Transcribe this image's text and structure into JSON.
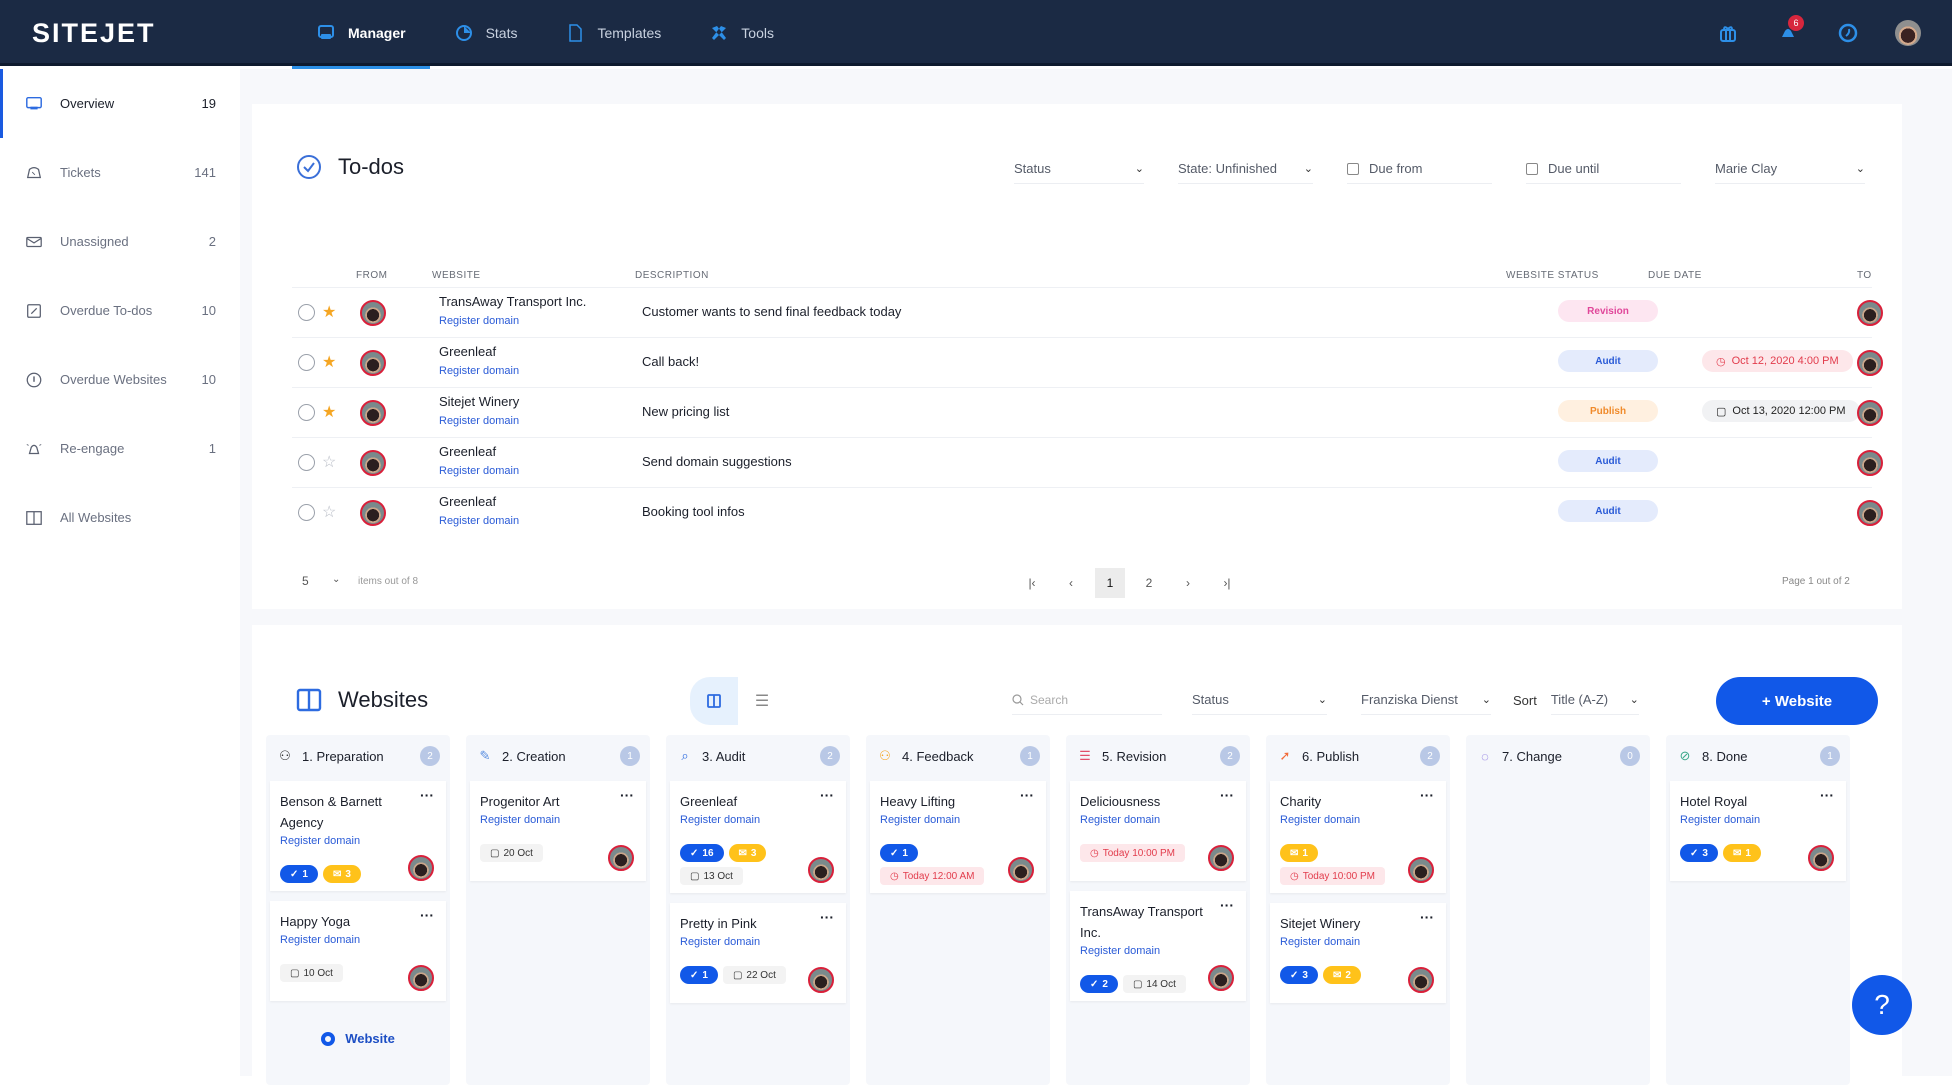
{
  "app": {
    "logo": "SITEJET"
  },
  "nav": [
    {
      "label": "Manager",
      "icon": "monitor-icon",
      "active": true
    },
    {
      "label": "Stats",
      "icon": "pie-chart-icon",
      "active": false
    },
    {
      "label": "Templates",
      "icon": "file-icon",
      "active": false
    },
    {
      "label": "Tools",
      "icon": "tools-icon",
      "active": false
    }
  ],
  "topRight": {
    "notification_count": "6",
    "help_glyph": "?"
  },
  "sidebar": {
    "items": [
      {
        "label": "Overview",
        "count": "19",
        "icon": "monitor-icon"
      },
      {
        "label": "Tickets",
        "count": "141",
        "icon": "ticket-icon"
      },
      {
        "label": "Unassigned",
        "count": "2",
        "icon": "mail-icon"
      },
      {
        "label": "Overdue To-dos",
        "count": "10",
        "icon": "check-square-icon"
      },
      {
        "label": "Overdue Websites",
        "count": "10",
        "icon": "alert-circle-icon"
      },
      {
        "label": "Re-engage",
        "count": "1",
        "icon": "bell-icon"
      },
      {
        "label": "All Websites",
        "count": "",
        "icon": "columns-icon"
      }
    ]
  },
  "todos": {
    "title": "To-dos",
    "filters": {
      "status": "Status",
      "state": "State: Unfinished",
      "due_from": "Due from",
      "due_until": "Due until",
      "assignee": "Marie Clay"
    },
    "columns": {
      "from": "FROM",
      "website": "WEBSITE",
      "description": "DESCRIPTION",
      "website_status": "WEBSITE STATUS",
      "due_date": "DUE DATE",
      "to": "TO"
    },
    "rows": [
      {
        "starred": true,
        "website": "TransAway Transport Inc.",
        "link": "Register domain",
        "description": "Customer wants to send final feedback today",
        "status": "Revision",
        "due": ""
      },
      {
        "starred": true,
        "website": "Greenleaf",
        "link": "Register domain",
        "description": "Call back!",
        "status": "Audit",
        "due": "Oct 12, 2020 4:00 PM"
      },
      {
        "starred": true,
        "website": "Sitejet Winery",
        "link": "Register domain",
        "description": "New pricing list",
        "status": "Publish",
        "due": "Oct 13, 2020 12:00 PM"
      },
      {
        "starred": false,
        "website": "Greenleaf",
        "link": "Register domain",
        "description": "Send domain suggestions",
        "status": "Audit",
        "due": ""
      },
      {
        "starred": false,
        "website": "Greenleaf",
        "link": "Register domain",
        "description": "Booking tool infos",
        "status": "Audit",
        "due": ""
      }
    ],
    "pager": {
      "per_page": "5",
      "items_text": "items out of 8",
      "pages": [
        "1",
        "2"
      ],
      "current": "1",
      "page_text": "Page 1 out of 2",
      "first": "|‹",
      "prev": "‹",
      "next": "›",
      "last": "›|"
    }
  },
  "websites": {
    "title": "Websites",
    "search_placeholder": "Search",
    "status": "Status",
    "assignee": "Franziska Dienst",
    "sort_label": "Sort",
    "sort_value": "Title (A-Z)",
    "add_button": "+ Website",
    "add_link": "Website",
    "columns": [
      {
        "label": "1. Preparation",
        "count": "2",
        "icon": "user-icon",
        "icon_color": "#333333",
        "cards": [
          {
            "name": "Benson & Barnett Agency",
            "link": "Register domain",
            "todos": "1",
            "messages": "3"
          },
          {
            "name": "Happy Yoga",
            "link": "Register domain",
            "date": "10 Oct"
          }
        ]
      },
      {
        "label": "2. Creation",
        "count": "1",
        "icon": "pencil-icon",
        "icon_color": "#5b8fe0",
        "cards": [
          {
            "name": "Progenitor Art",
            "link": "Register domain",
            "date": "20 Oct"
          }
        ]
      },
      {
        "label": "3. Audit",
        "count": "2",
        "icon": "search-icon",
        "icon_color": "#2d6be0",
        "cards": [
          {
            "name": "Greenleaf",
            "link": "Register domain",
            "todos": "16",
            "messages": "3",
            "date": "13 Oct"
          },
          {
            "name": "Pretty in Pink",
            "link": "Register domain",
            "todos": "1",
            "date": "22 Oct"
          }
        ]
      },
      {
        "label": "4. Feedback",
        "count": "1",
        "icon": "user-icon",
        "icon_color": "#f5a623",
        "cards": [
          {
            "name": "Heavy Lifting",
            "link": "Register domain",
            "todos": "1",
            "late": "Today 12:00 AM"
          }
        ]
      },
      {
        "label": "5. Revision",
        "count": "2",
        "icon": "list-icon",
        "icon_color": "#e2506a",
        "cards": [
          {
            "name": "Deliciousness",
            "link": "Register domain",
            "late": "Today 10:00 PM"
          },
          {
            "name": "TransAway Transport Inc.",
            "link": "Register domain",
            "todos": "2",
            "date": "14 Oct"
          }
        ]
      },
      {
        "label": "6. Publish",
        "count": "2",
        "icon": "rocket-icon",
        "icon_color": "#f26b3a",
        "cards": [
          {
            "name": "Charity",
            "link": "Register domain",
            "messages": "1",
            "late": "Today 10:00 PM"
          },
          {
            "name": "Sitejet Winery",
            "link": "Register domain",
            "todos": "3",
            "messages": "2"
          }
        ]
      },
      {
        "label": "7. Change",
        "count": "0",
        "icon": "chat-icon",
        "icon_color": "#6a4ed8",
        "cards": []
      },
      {
        "label": "8. Done",
        "count": "1",
        "icon": "check-circle-icon",
        "icon_color": "#3aa88a",
        "cards": [
          {
            "name": "Hotel Royal",
            "link": "Register domain",
            "todos": "3",
            "messages": "1"
          }
        ]
      }
    ]
  },
  "status_colors": {
    "Revision": {
      "bg": "#fde6f1",
      "fg": "#e0479a"
    },
    "Audit": {
      "bg": "#e4ebfc",
      "fg": "#2a5bd7"
    },
    "Publish": {
      "bg": "#fff0e0",
      "fg": "#f08a2a"
    }
  },
  "accent": "#1158e8"
}
